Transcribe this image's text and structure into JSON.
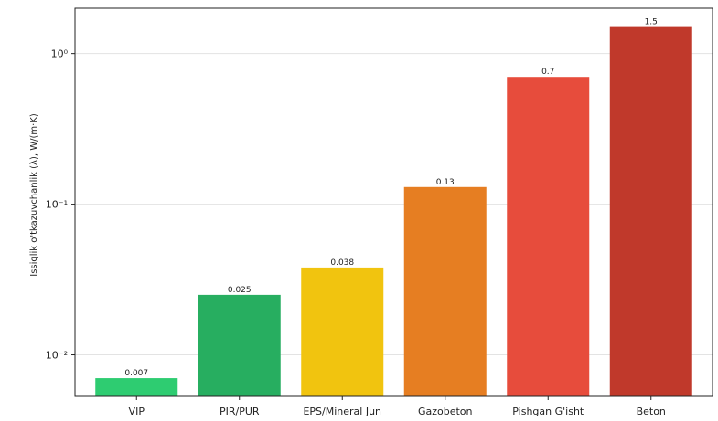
{
  "chart_data": {
    "type": "bar",
    "title": "",
    "xlabel": "",
    "ylabel": "Issiqlik o'tkazuvchanlik (λ), W/(m·K)",
    "yscale": "log",
    "ylim": [
      0.0053,
      2.0
    ],
    "yticks": [
      {
        "value": 0.01,
        "label": "10⁻²"
      },
      {
        "value": 0.1,
        "label": "10⁻¹"
      },
      {
        "value": 1,
        "label": "10⁰"
      }
    ],
    "categories": [
      "VIP",
      "PIR/PUR",
      "EPS/Mineral Jun",
      "Gazobeton",
      "Pishgan G'isht",
      "Beton"
    ],
    "values": [
      0.007,
      0.025,
      0.038,
      0.13,
      0.7,
      1.5
    ],
    "value_labels": [
      "0.007",
      "0.025",
      "0.038",
      "0.13",
      "0.7",
      "1.5"
    ],
    "colors": [
      "#2ecc71",
      "#27ae60",
      "#f1c40f",
      "#e67e22",
      "#e74c3c",
      "#c0392b"
    ],
    "grid": true
  }
}
